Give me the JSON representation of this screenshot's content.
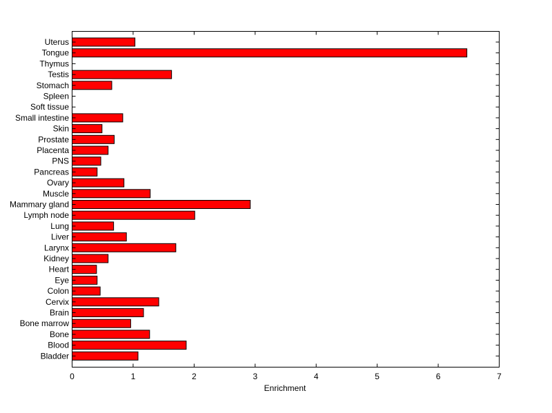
{
  "chart_data": {
    "type": "bar",
    "orientation": "horizontal",
    "categories": [
      "Uterus",
      "Tongue",
      "Thymus",
      "Testis",
      "Stomach",
      "Spleen",
      "Soft tissue",
      "Small intestine",
      "Skin",
      "Prostate",
      "Placenta",
      "PNS",
      "Pancreas",
      "Ovary",
      "Muscle",
      "Mammary gland",
      "Lymph node",
      "Lung",
      "Liver",
      "Larynx",
      "Kidney",
      "Heart",
      "Eye",
      "Colon",
      "Cervix",
      "Brain",
      "Bone marrow",
      "Bone",
      "Blood",
      "Bladder"
    ],
    "values": [
      1.03,
      6.47,
      0,
      1.63,
      0.65,
      0,
      0,
      0.83,
      0.49,
      0.69,
      0.59,
      0.47,
      0.41,
      0.85,
      1.28,
      2.92,
      2.01,
      0.68,
      0.89,
      1.7,
      0.59,
      0.4,
      0.41,
      0.46,
      1.42,
      1.17,
      0.96,
      1.27,
      1.87,
      1.08
    ],
    "title": "",
    "xlabel": "Enrichment",
    "ylabel": "",
    "xlim": [
      0,
      7
    ],
    "xticks": [
      0,
      1,
      2,
      3,
      4,
      5,
      6,
      7
    ],
    "bar_color": "#ff0000",
    "bar_edge_color": "#000000",
    "grid": false
  }
}
